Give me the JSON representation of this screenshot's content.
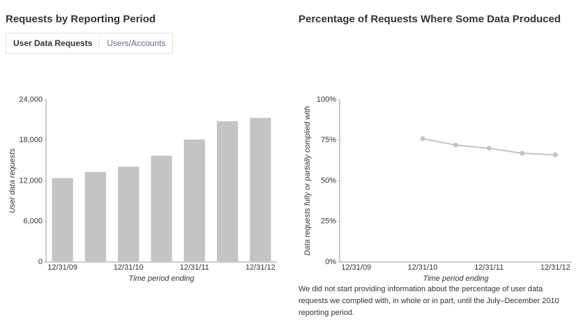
{
  "tabs": [
    "User Data Requests",
    "Users/Accounts"
  ],
  "note": "We did not start providing information about the percentage of user data requests we complied with, in whole or in part, until the July–December 2010 reporting period.",
  "chart_data": [
    {
      "type": "bar",
      "title": "Requests by Reporting Period",
      "x_label": "Time period ending",
      "y_label": "User data requests",
      "categories": [
        "12/31/09",
        null,
        "12/31/10",
        null,
        "12/31/11",
        null,
        "12/31/12"
      ],
      "values": [
        12400,
        13300,
        14100,
        15700,
        18100,
        20800,
        21300
      ],
      "color": "#c4c4c4",
      "ylim": [
        0,
        24000
      ],
      "yticks": [
        0,
        {
          "value": 6000,
          "label": "6,000"
        },
        {
          "value": 12000,
          "label": "12,000"
        },
        {
          "value": 18000,
          "label": "18,000"
        },
        {
          "value": 24000,
          "label": "24,000"
        }
      ]
    },
    {
      "type": "line",
      "title": "Percentage of Requests Where Some Data Produced",
      "x_label": "Time period ending",
      "y_label": "Data requests fully or partially complied with",
      "categories": [
        "12/31/09",
        null,
        "12/31/10",
        null,
        "12/31/11",
        null,
        "12/31/12"
      ],
      "values": [
        null,
        null,
        76,
        72,
        70,
        67,
        66
      ],
      "color": "#c4c4c4",
      "ylim": [
        0,
        100
      ],
      "yticks": [
        {
          "value": 0,
          "label": "0%"
        },
        {
          "value": 25,
          "label": "25%"
        },
        {
          "value": 50,
          "label": "50%"
        },
        {
          "value": 75,
          "label": "75%"
        },
        {
          "value": 100,
          "label": "100%"
        }
      ]
    }
  ]
}
